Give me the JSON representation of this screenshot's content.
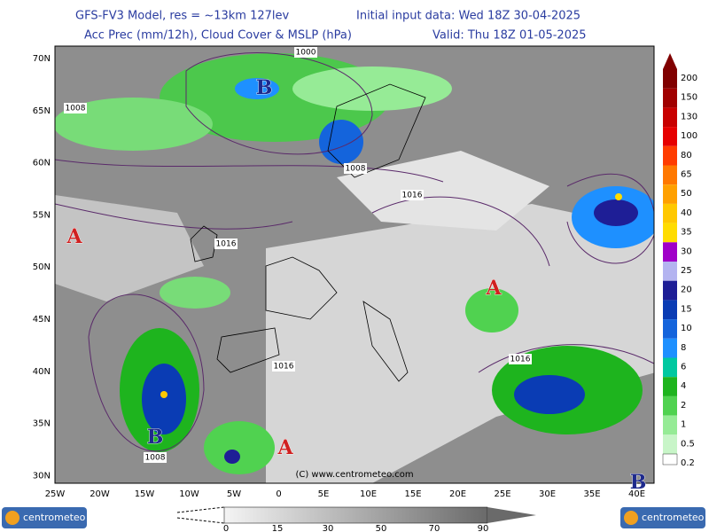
{
  "header": {
    "model": "GFS-FV3 Model, res = ~13km 127lev",
    "init": "Initial input data: Wed 18Z 30-04-2025",
    "fields": "Acc Prec (mm/12h), Cloud Cover & MSLP (hPa)",
    "valid": "Valid: Thu 18Z 01-05-2025"
  },
  "latitude_labels": [
    "70N",
    "65N",
    "60N",
    "55N",
    "50N",
    "45N",
    "40N",
    "35N",
    "30N"
  ],
  "longitude_labels": [
    "25W",
    "20W",
    "15W",
    "10W",
    "5W",
    "0",
    "5E",
    "10E",
    "15E",
    "20E",
    "25E",
    "30E",
    "35E",
    "40E"
  ],
  "precip_legend": [
    "200",
    "150",
    "130",
    "100",
    "80",
    "65",
    "50",
    "40",
    "35",
    "30",
    "25",
    "20",
    "15",
    "10",
    "8",
    "6",
    "4",
    "2",
    "1",
    "0.5",
    "0.2"
  ],
  "cloud_legend": [
    "0",
    "15",
    "30",
    "50",
    "70",
    "90"
  ],
  "isobar_labels": [
    "1000",
    "1008",
    "1008",
    "1016",
    "1016",
    "1016",
    "1016",
    "1008"
  ],
  "pressure_centers": [
    "B",
    "A",
    "A",
    "B",
    "A",
    "B"
  ],
  "copyright": "(C) www.centrometeo.com",
  "logos": [
    "centrometeo",
    "centrometeo"
  ]
}
